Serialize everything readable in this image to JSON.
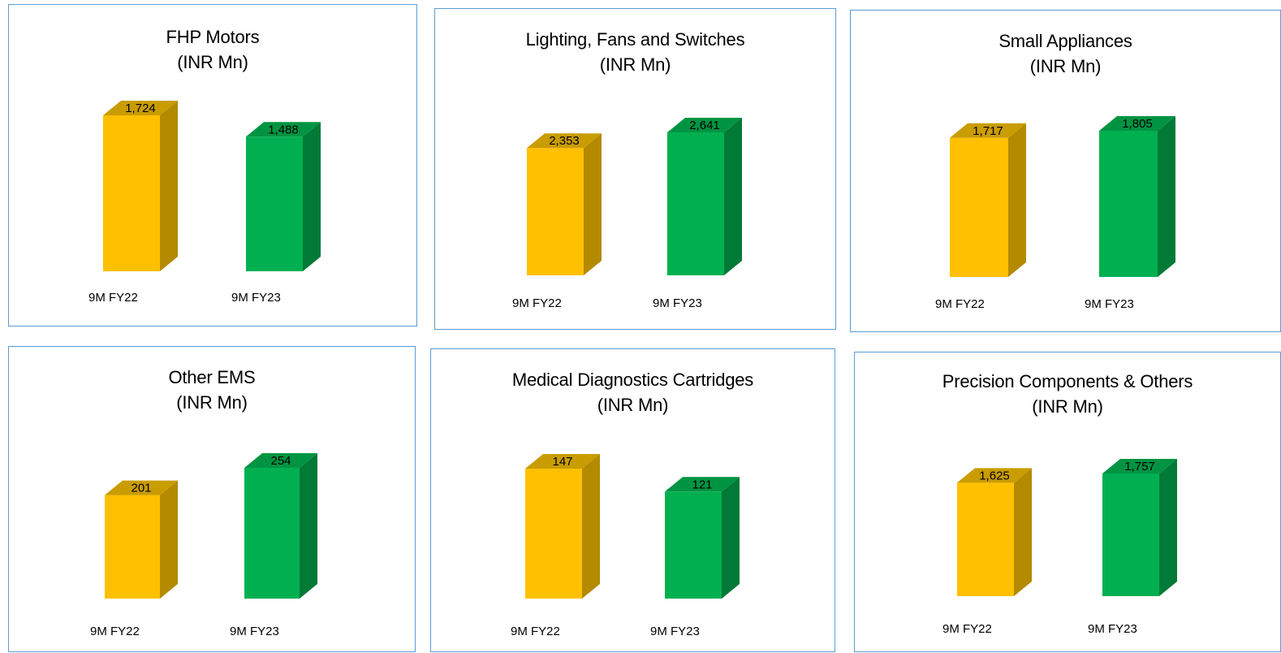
{
  "colors": {
    "fy22_front": "#ffc000",
    "fy22_side": "#b38a00",
    "fy22_top": "#c99c00",
    "fy23_front": "#00b050",
    "fy23_side": "#007a36",
    "fy23_top": "#009442",
    "panel_border": "#5b9bd5"
  },
  "chart_data": [
    {
      "type": "bar",
      "title": "FHP Motors",
      "subtitle": "(INR Mn)",
      "categories": [
        "9M FY22",
        "9M FY23"
      ],
      "values": [
        1724,
        1488
      ],
      "value_labels": [
        "1,724",
        "1,488"
      ]
    },
    {
      "type": "bar",
      "title": "Lighting, Fans and Switches",
      "subtitle": "(INR Mn)",
      "categories": [
        "9M FY22",
        "9M FY23"
      ],
      "values": [
        2353,
        2641
      ],
      "value_labels": [
        "2,353",
        "2,641"
      ]
    },
    {
      "type": "bar",
      "title": "Small Appliances",
      "subtitle": "(INR Mn)",
      "categories": [
        "9M FY22",
        "9M FY23"
      ],
      "values": [
        1717,
        1805
      ],
      "value_labels": [
        "1,717",
        "1,805"
      ]
    },
    {
      "type": "bar",
      "title": "Other EMS",
      "subtitle": "(INR Mn)",
      "categories": [
        "9M FY22",
        "9M FY23"
      ],
      "values": [
        201,
        254
      ],
      "value_labels": [
        "201",
        "254"
      ]
    },
    {
      "type": "bar",
      "title": "Medical Diagnostics Cartridges",
      "subtitle": "(INR Mn)",
      "categories": [
        "9M FY22",
        "9M FY23"
      ],
      "values": [
        147,
        121
      ],
      "value_labels": [
        "147",
        "121"
      ]
    },
    {
      "type": "bar",
      "title": "Precision Components & Others",
      "subtitle": "(INR Mn)",
      "categories": [
        "9M FY22",
        "9M FY23"
      ],
      "values": [
        1625,
        1757
      ],
      "value_labels": [
        "1,625",
        "1,757"
      ]
    }
  ]
}
